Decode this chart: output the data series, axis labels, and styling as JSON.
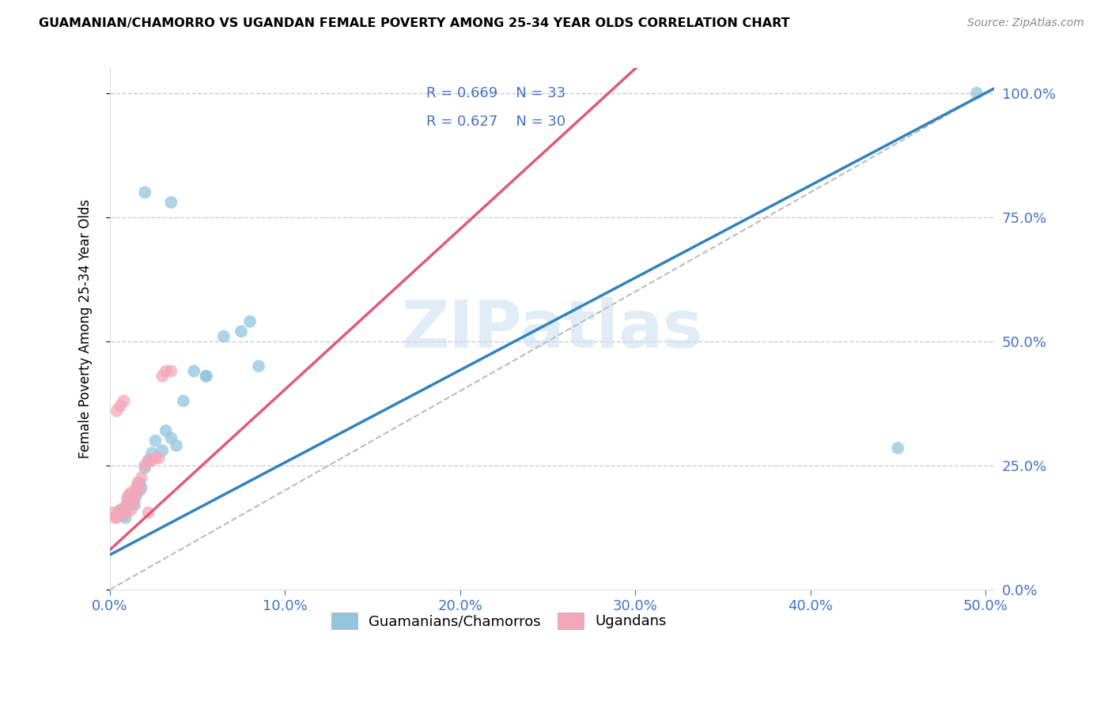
{
  "title": "GUAMANIAN/CHAMORRO VS UGANDAN FEMALE POVERTY AMONG 25-34 YEAR OLDS CORRELATION CHART",
  "source": "Source: ZipAtlas.com",
  "ylabel": "Female Poverty Among 25-34 Year Olds",
  "legend_label1": "Guamanians/Chamorros",
  "legend_label2": "Ugandans",
  "R1": 0.669,
  "N1": 33,
  "R2": 0.627,
  "N2": 30,
  "blue_color": "#92c5de",
  "pink_color": "#f4a7b9",
  "blue_line_color": "#3182bd",
  "pink_line_color": "#e05a7a",
  "diag_color": "#cccccc",
  "watermark": "ZIPatlas",
  "xlim": [
    0.0,
    0.505
  ],
  "ylim": [
    0.0,
    1.05
  ],
  "blue_scatter_x": [
    0.005,
    0.006,
    0.007,
    0.008,
    0.009,
    0.01,
    0.012,
    0.013,
    0.014,
    0.015,
    0.016,
    0.017,
    0.018,
    0.02,
    0.022,
    0.024,
    0.026,
    0.03,
    0.032,
    0.035,
    0.038,
    0.042,
    0.048,
    0.055,
    0.065,
    0.075,
    0.085,
    0.02,
    0.035,
    0.055,
    0.08,
    0.45,
    0.495
  ],
  "blue_scatter_y": [
    0.155,
    0.16,
    0.15,
    0.16,
    0.145,
    0.175,
    0.18,
    0.175,
    0.17,
    0.19,
    0.2,
    0.215,
    0.205,
    0.245,
    0.26,
    0.275,
    0.3,
    0.28,
    0.32,
    0.305,
    0.29,
    0.38,
    0.44,
    0.43,
    0.51,
    0.52,
    0.45,
    0.8,
    0.78,
    0.43,
    0.54,
    0.285,
    1.0
  ],
  "pink_scatter_x": [
    0.002,
    0.003,
    0.004,
    0.005,
    0.006,
    0.007,
    0.008,
    0.009,
    0.01,
    0.011,
    0.012,
    0.013,
    0.014,
    0.015,
    0.016,
    0.017,
    0.018,
    0.02,
    0.022,
    0.024,
    0.026,
    0.028,
    0.03,
    0.032,
    0.035,
    0.004,
    0.006,
    0.008,
    0.012,
    0.022
  ],
  "pink_scatter_y": [
    0.155,
    0.145,
    0.145,
    0.155,
    0.15,
    0.16,
    0.165,
    0.155,
    0.185,
    0.19,
    0.195,
    0.175,
    0.18,
    0.205,
    0.215,
    0.2,
    0.225,
    0.25,
    0.26,
    0.26,
    0.265,
    0.265,
    0.43,
    0.44,
    0.44,
    0.36,
    0.37,
    0.38,
    0.16,
    0.155
  ]
}
